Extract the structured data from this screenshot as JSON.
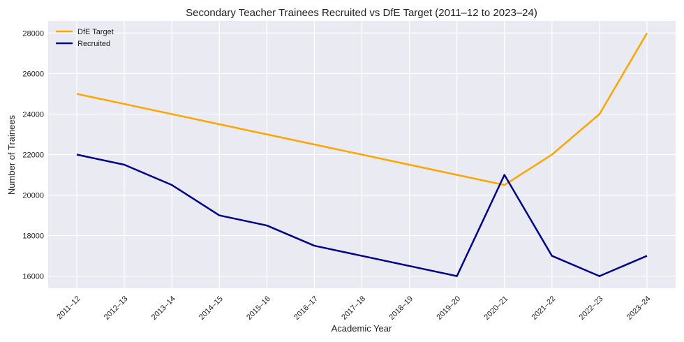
{
  "chart_data": {
    "type": "line",
    "title": "Secondary Teacher Trainees Recruited vs DfE Target (2011–12 to 2023–24)",
    "xlabel": "Academic Year",
    "ylabel": "Number of Trainees",
    "categories": [
      "2011–12",
      "2012–13",
      "2013–14",
      "2014–15",
      "2015–16",
      "2016–17",
      "2017–18",
      "2018–19",
      "2019–20",
      "2020–21",
      "2021–22",
      "2022–23",
      "2023–24"
    ],
    "ylim": [
      15400,
      28600
    ],
    "yticks": [
      16000,
      18000,
      20000,
      22000,
      24000,
      26000,
      28000
    ],
    "grid": true,
    "legend_position": "top-left",
    "series": [
      {
        "name": "DfE Target",
        "color": "#FFA500",
        "values": [
          25000,
          24500,
          24000,
          23500,
          23000,
          22500,
          22000,
          21500,
          21000,
          20500,
          22000,
          24000,
          28000
        ]
      },
      {
        "name": "Recruited",
        "color": "#00008B",
        "values": [
          22000,
          21500,
          20500,
          19000,
          18500,
          17500,
          17000,
          16500,
          16000,
          21000,
          17000,
          16000,
          17000
        ]
      }
    ]
  }
}
